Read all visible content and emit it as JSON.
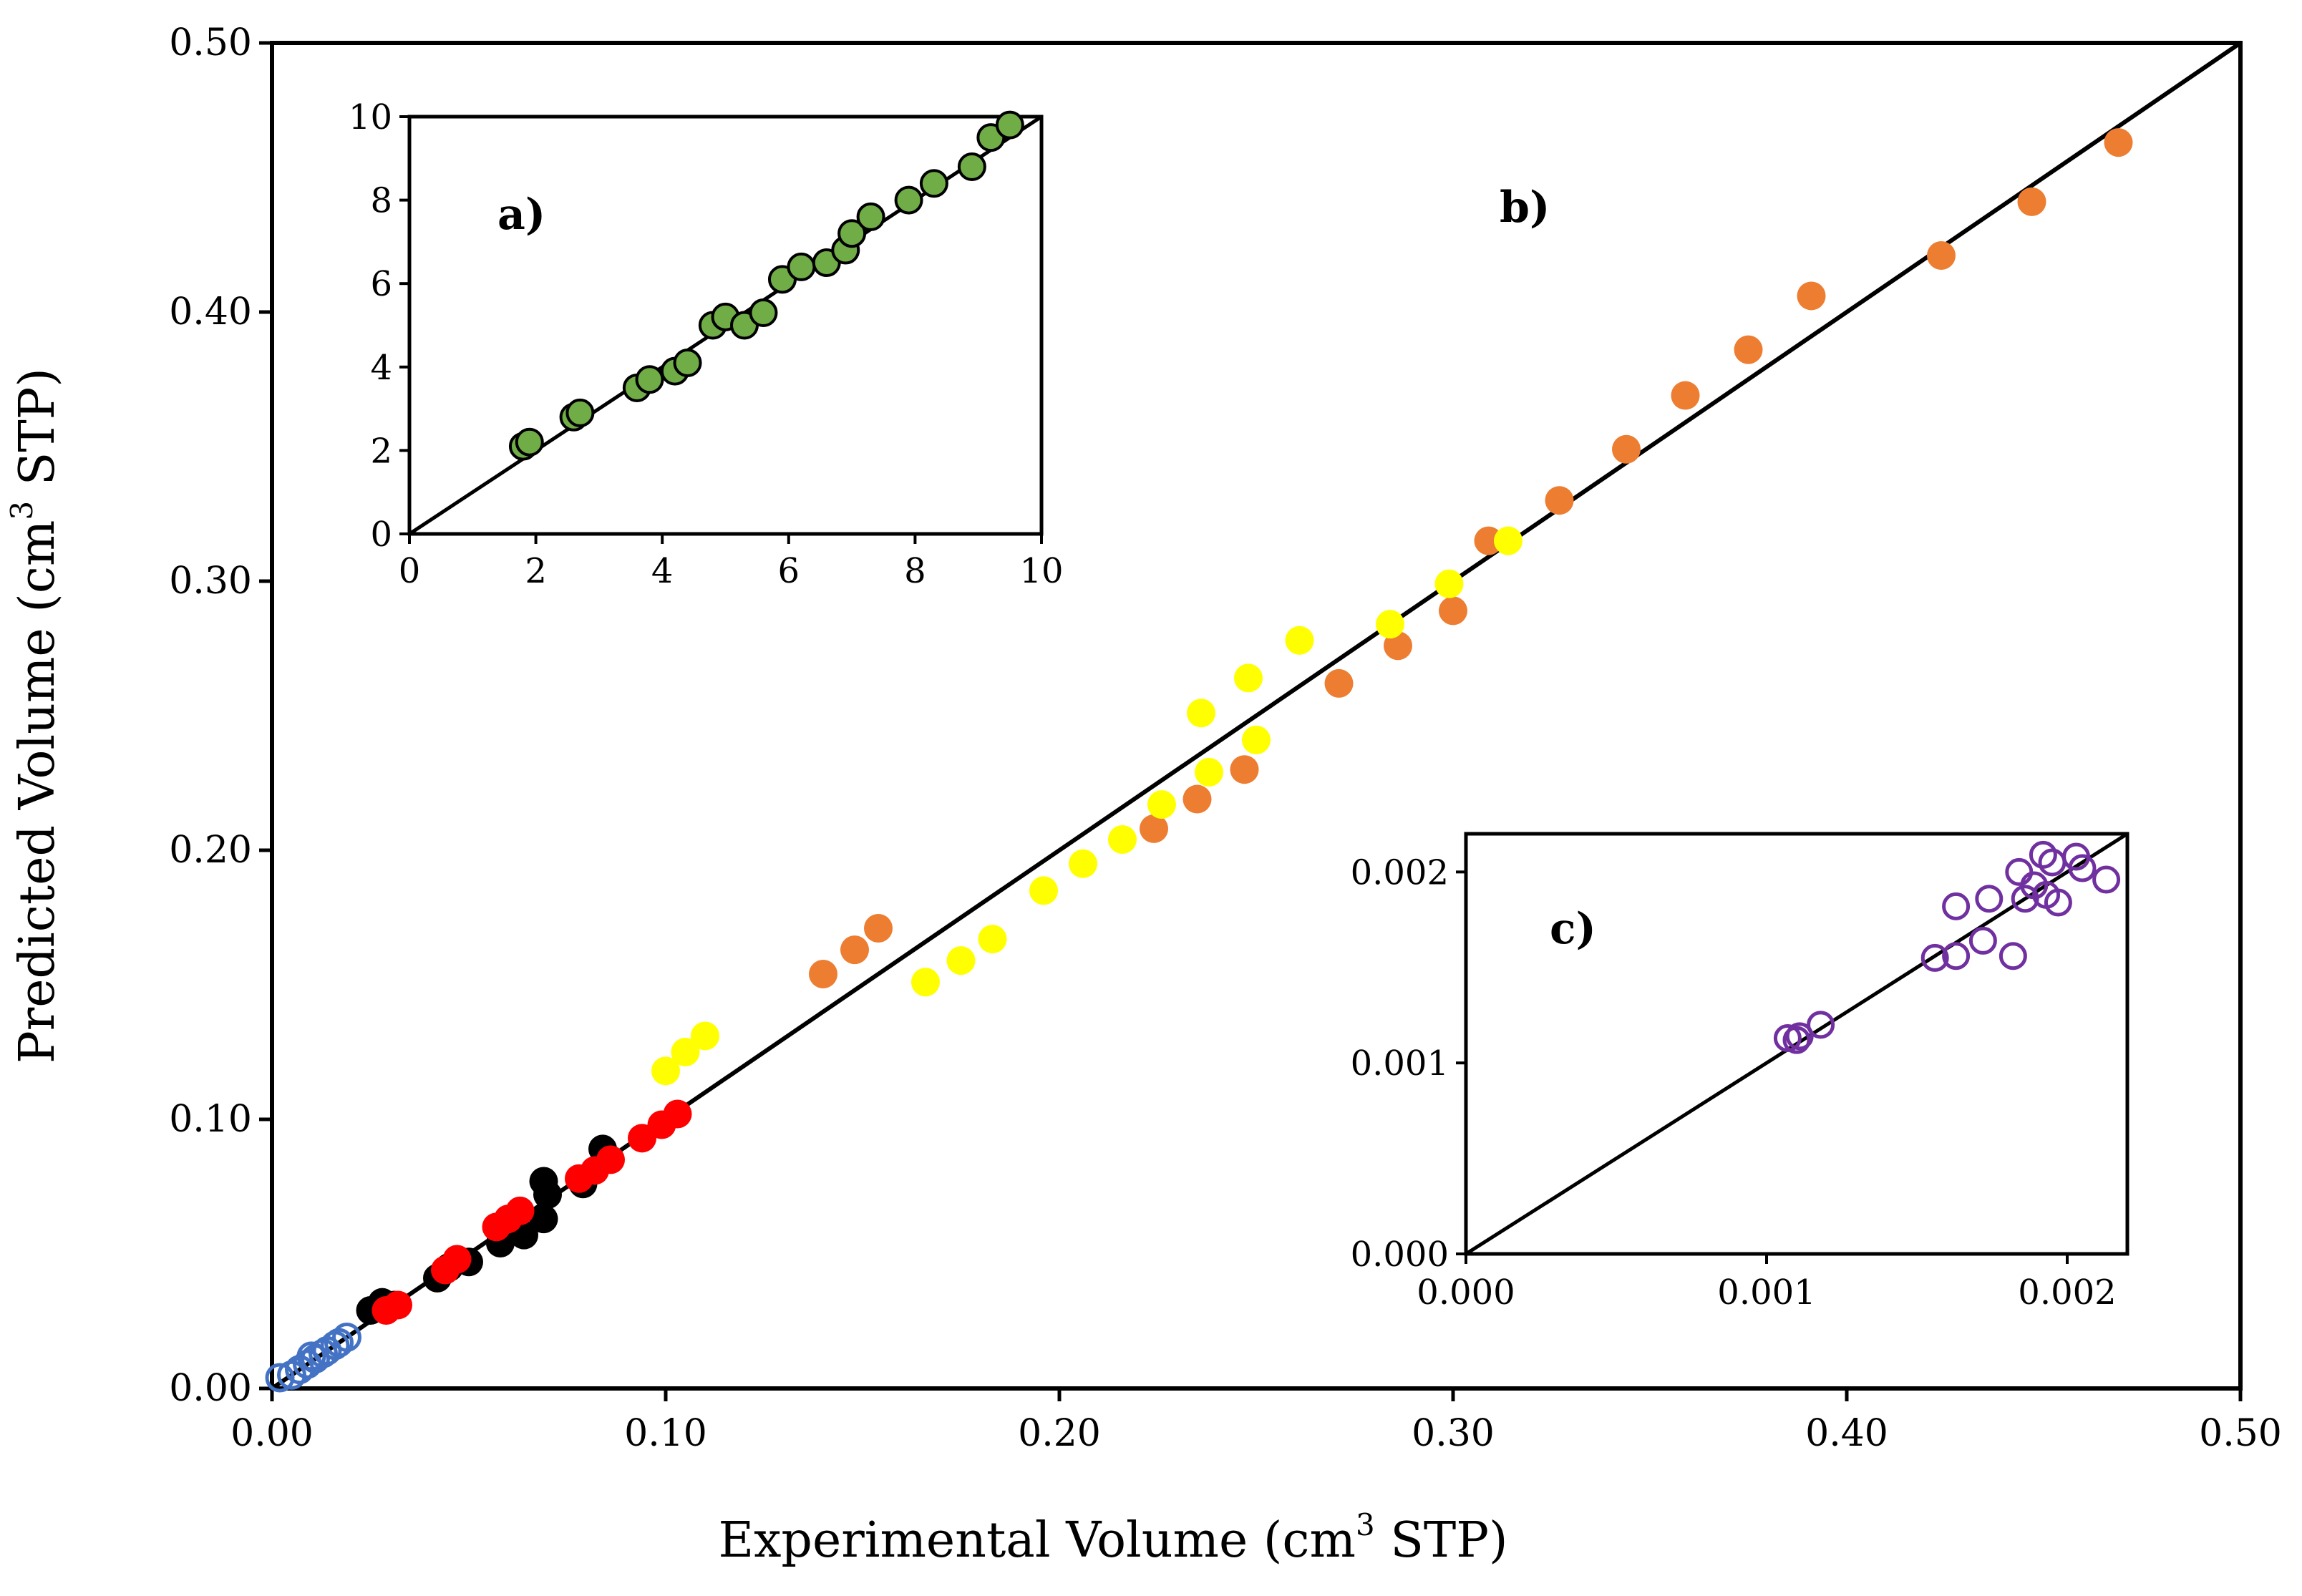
{
  "chart_data": [
    {
      "id": "main",
      "type": "scatter",
      "panel_label": "b)",
      "xlabel": "Experimental Volume (cm",
      "xlabel_sup": "3",
      "xlabel_tail": " STP)",
      "ylabel": "Predicted Volume (cm",
      "ylabel_sup": "3",
      "ylabel_tail": " STP)",
      "xlim": [
        0,
        0.5
      ],
      "ylim": [
        0,
        0.5
      ],
      "xticks": [
        "0.00",
        "0.10",
        "0.20",
        "0.30",
        "0.40",
        "0.50"
      ],
      "yticks": [
        "0.00",
        "0.10",
        "0.20",
        "0.30",
        "0.40",
        "0.50"
      ],
      "reference_line": "y = x",
      "grid": false,
      "series": [
        {
          "color": "#ed7d31",
          "marker": "filled-circle",
          "points": [
            [
              0.14,
              0.154
            ],
            [
              0.148,
              0.163
            ],
            [
              0.154,
              0.171
            ],
            [
              0.224,
              0.208
            ],
            [
              0.235,
              0.219
            ],
            [
              0.247,
              0.23
            ],
            [
              0.271,
              0.262
            ],
            [
              0.286,
              0.276
            ],
            [
              0.3,
              0.289
            ],
            [
              0.309,
              0.315
            ],
            [
              0.327,
              0.33
            ],
            [
              0.344,
              0.349
            ],
            [
              0.359,
              0.369
            ],
            [
              0.375,
              0.386
            ],
            [
              0.391,
              0.406
            ],
            [
              0.424,
              0.421
            ],
            [
              0.447,
              0.441
            ],
            [
              0.469,
              0.463
            ]
          ]
        },
        {
          "color": "#ffff00",
          "marker": "filled-circle",
          "points": [
            [
              0.1,
              0.118
            ],
            [
              0.105,
              0.125
            ],
            [
              0.11,
              0.131
            ],
            [
              0.166,
              0.151
            ],
            [
              0.175,
              0.159
            ],
            [
              0.183,
              0.167
            ],
            [
              0.196,
              0.185
            ],
            [
              0.206,
              0.195
            ],
            [
              0.216,
              0.204
            ],
            [
              0.226,
              0.217
            ],
            [
              0.236,
              0.251
            ],
            [
              0.238,
              0.229
            ],
            [
              0.248,
              0.264
            ],
            [
              0.25,
              0.241
            ],
            [
              0.261,
              0.278
            ],
            [
              0.284,
              0.284
            ],
            [
              0.299,
              0.299
            ],
            [
              0.314,
              0.315
            ]
          ]
        },
        {
          "color": "#000000",
          "marker": "filled-circle",
          "points": [
            [
              0.025,
              0.029
            ],
            [
              0.028,
              0.032
            ],
            [
              0.031,
              0.031
            ],
            [
              0.042,
              0.041
            ],
            [
              0.045,
              0.045
            ],
            [
              0.05,
              0.047
            ],
            [
              0.058,
              0.054
            ],
            [
              0.064,
              0.057
            ],
            [
              0.069,
              0.063
            ],
            [
              0.07,
              0.072
            ],
            [
              0.069,
              0.077
            ],
            [
              0.079,
              0.076
            ],
            [
              0.084,
              0.089
            ]
          ]
        },
        {
          "color": "#ff0000",
          "marker": "filled-circle",
          "points": [
            [
              0.029,
              0.029
            ],
            [
              0.032,
              0.031
            ],
            [
              0.044,
              0.044
            ],
            [
              0.047,
              0.048
            ],
            [
              0.057,
              0.06
            ],
            [
              0.06,
              0.063
            ],
            [
              0.063,
              0.066
            ],
            [
              0.078,
              0.078
            ],
            [
              0.082,
              0.081
            ],
            [
              0.086,
              0.085
            ],
            [
              0.094,
              0.093
            ],
            [
              0.099,
              0.098
            ],
            [
              0.103,
              0.102
            ]
          ]
        },
        {
          "color": "#4472c4",
          "marker": "open-circle",
          "points": [
            [
              0.002,
              0.004
            ],
            [
              0.005,
              0.005
            ],
            [
              0.007,
              0.007
            ],
            [
              0.009,
              0.009
            ],
            [
              0.011,
              0.011
            ],
            [
              0.01,
              0.012
            ],
            [
              0.013,
              0.013
            ],
            [
              0.014,
              0.014
            ],
            [
              0.016,
              0.016
            ],
            [
              0.017,
              0.017
            ],
            [
              0.019,
              0.019
            ]
          ]
        }
      ]
    },
    {
      "id": "inset-a",
      "type": "scatter",
      "panel_label": "a)",
      "xlim": [
        0,
        10
      ],
      "ylim": [
        0,
        10
      ],
      "xticks": [
        "0",
        "2",
        "4",
        "6",
        "8",
        "10"
      ],
      "yticks": [
        "0",
        "2",
        "4",
        "6",
        "8",
        "10"
      ],
      "reference_line": "y = x",
      "series": [
        {
          "color": "#70ad47",
          "marker": "filled-circle",
          "points": [
            [
              1.8,
              2.1
            ],
            [
              1.9,
              2.2
            ],
            [
              2.6,
              2.8
            ],
            [
              2.7,
              2.9
            ],
            [
              3.6,
              3.5
            ],
            [
              3.8,
              3.7
            ],
            [
              4.2,
              3.9
            ],
            [
              4.4,
              4.1
            ],
            [
              4.8,
              5.0
            ],
            [
              5.0,
              5.2
            ],
            [
              5.3,
              5.0
            ],
            [
              5.6,
              5.3
            ],
            [
              5.9,
              6.1
            ],
            [
              6.2,
              6.4
            ],
            [
              6.6,
              6.5
            ],
            [
              6.9,
              6.8
            ],
            [
              7.0,
              7.2
            ],
            [
              7.3,
              7.6
            ],
            [
              7.9,
              8.0
            ],
            [
              8.3,
              8.4
            ],
            [
              8.9,
              8.8
            ],
            [
              9.2,
              9.5
            ],
            [
              9.5,
              9.8
            ]
          ]
        }
      ]
    },
    {
      "id": "inset-c",
      "type": "scatter",
      "panel_label": "c)",
      "xlim": [
        0,
        0.0022
      ],
      "ylim": [
        0,
        0.0022
      ],
      "xticks": [
        "0.000",
        "0.001",
        "0.002"
      ],
      "yticks": [
        "0.000",
        "0.001",
        "0.002"
      ],
      "reference_line": "y = x",
      "series": [
        {
          "color": "#7030a0",
          "marker": "open-circle",
          "points": [
            [
              0.00107,
              0.00113
            ],
            [
              0.0011,
              0.00112
            ],
            [
              0.00111,
              0.00114
            ],
            [
              0.00118,
              0.0012
            ],
            [
              0.00156,
              0.00155
            ],
            [
              0.00163,
              0.00156
            ],
            [
              0.00163,
              0.00182
            ],
            [
              0.00172,
              0.00164
            ],
            [
              0.00174,
              0.00186
            ],
            [
              0.00182,
              0.00156
            ],
            [
              0.00184,
              0.002
            ],
            [
              0.00186,
              0.00186
            ],
            [
              0.00189,
              0.00193
            ],
            [
              0.00192,
              0.00209
            ],
            [
              0.00193,
              0.00188
            ],
            [
              0.00195,
              0.00205
            ],
            [
              0.00197,
              0.00184
            ],
            [
              0.00203,
              0.00208
            ],
            [
              0.00205,
              0.00202
            ],
            [
              0.00213,
              0.00196
            ]
          ]
        }
      ]
    }
  ]
}
